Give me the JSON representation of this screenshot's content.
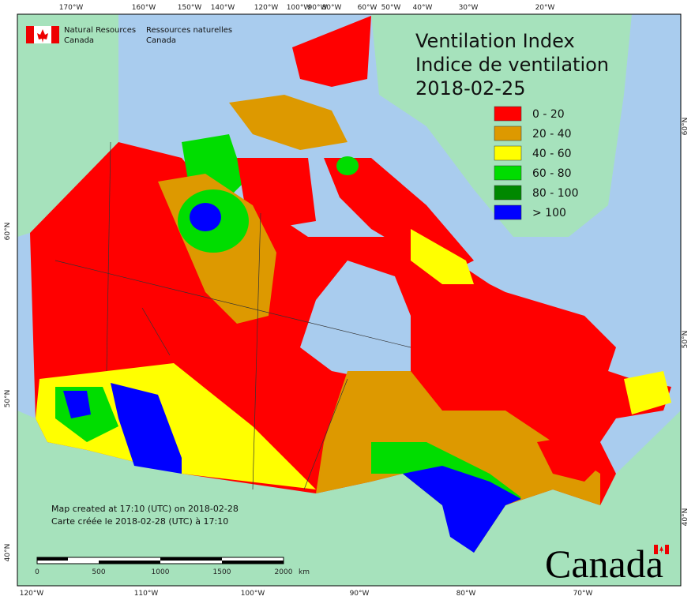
{
  "header": {
    "agency_en": [
      "Natural Resources",
      "Canada"
    ],
    "agency_fr": [
      "Ressources naturelles",
      "Canada"
    ]
  },
  "title": [
    "Ventilation Index",
    "Indice de ventilation",
    "2018-02-25"
  ],
  "legend": [
    {
      "label": "0 - 20",
      "color": "#ff0000"
    },
    {
      "label": "20 - 40",
      "color": "#dd9900"
    },
    {
      "label": "40 - 60",
      "color": "#ffff00"
    },
    {
      "label": "60 - 80",
      "color": "#00dd00"
    },
    {
      "label": "80 - 100",
      "color": "#008800"
    },
    {
      "label": "> 100",
      "color": "#0000ff"
    }
  ],
  "graticule": {
    "top": [
      "170°W",
      "160°W",
      "150°W",
      "140°W",
      "120°W",
      "100°W",
      "90°W",
      "80°W",
      "60°W",
      "50°W",
      "40°W",
      "30°W",
      "20°W"
    ],
    "bottom": [
      "120°W",
      "110°W",
      "100°W",
      "90°W",
      "80°W",
      "70°W"
    ],
    "left": [
      "60°N",
      "50°N",
      "40°N"
    ],
    "right": [
      "60°N",
      "50°N",
      "40°N"
    ]
  },
  "credit": [
    "Map created at 17:10 (UTC) on 2018-02-28",
    "Carte créée le 2018-02-28 (UTC) à 17:10"
  ],
  "scale_bar": {
    "labels": [
      "0",
      "500",
      "1000",
      "1500",
      "2000"
    ],
    "unit": "km"
  },
  "wordmark": "Canada"
}
